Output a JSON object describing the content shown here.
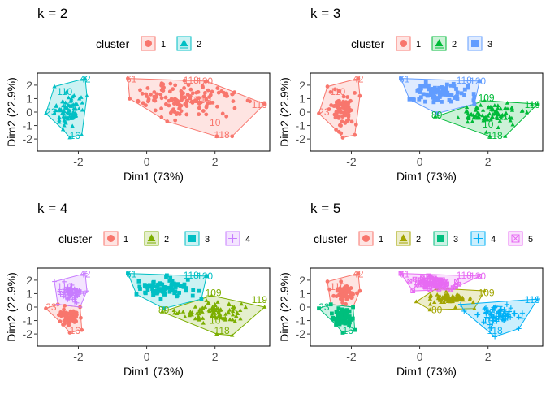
{
  "chart_data": [
    {
      "type": "scatter",
      "title": "k = 2",
      "legend_title": "cluster",
      "legend_position": "top",
      "xlabel": "Dim1 (73%)",
      "ylabel": "Dim2 (22.9%)",
      "xlim": [
        -3.2,
        3.6
      ],
      "ylim": [
        -2.9,
        2.9
      ],
      "x_ticks": [
        "-2",
        "0",
        "2"
      ],
      "y_ticks": [
        "-2",
        "-1",
        "0",
        "1",
        "2"
      ],
      "x_tick_values": [
        -2,
        0,
        2
      ],
      "y_tick_values": [
        -2,
        -1,
        0,
        1,
        2
      ],
      "point_labels": [
        "42",
        "23",
        "16",
        "119",
        "110",
        "109",
        "61",
        "118",
        "10",
        "120"
      ],
      "series": [
        {
          "name": "1",
          "color": "#F8766D",
          "shape": "circle",
          "hull": [
            [
              -0.55,
              2.5
            ],
            [
              1.75,
              2.3
            ],
            [
              3.45,
              0.6
            ],
            [
              2.5,
              -1.8
            ],
            [
              2.05,
              -1.8
            ],
            [
              0.6,
              -0.7
            ],
            [
              -0.5,
              1.0
            ]
          ],
          "x_center": 1.1,
          "y_center": 0.9,
          "x_spread": 1.4,
          "y_spread": 1.1,
          "labels": [
            [
              -0.45,
              2.45,
              "61"
            ],
            [
              1.3,
              2.35,
              "118"
            ],
            [
              1.7,
              2.3,
              "120"
            ],
            [
              3.3,
              0.55,
              "119"
            ],
            [
              1.45,
              0.9,
              "110"
            ],
            [
              1.65,
              0.9,
              "109"
            ],
            [
              2.0,
              -0.8,
              "10"
            ],
            [
              2.2,
              -1.7,
              "118"
            ]
          ]
        },
        {
          "name": "2",
          "color": "#00BFC4",
          "shape": "triangle",
          "hull": [
            [
              -1.8,
              2.5
            ],
            [
              -1.75,
              1.2
            ],
            [
              -1.9,
              -1.7
            ],
            [
              -2.25,
              -1.9
            ],
            [
              -2.45,
              -1.3
            ],
            [
              -2.95,
              -0.1
            ],
            [
              -2.7,
              1.9
            ]
          ],
          "x_center": -2.25,
          "y_center": 0.15,
          "x_spread": 0.3,
          "y_spread": 1.0,
          "labels": [
            [
              -1.8,
              2.45,
              "42"
            ],
            [
              -2.4,
              1.5,
              "110"
            ],
            [
              -2.8,
              0.0,
              "23"
            ],
            [
              -2.1,
              -1.75,
              "16"
            ]
          ]
        }
      ]
    },
    {
      "type": "scatter",
      "title": "k = 3",
      "legend_title": "cluster",
      "legend_position": "top",
      "xlabel": "Dim1 (73%)",
      "ylabel": "Dim2 (22.9%)",
      "xlim": [
        -3.2,
        3.6
      ],
      "ylim": [
        -2.9,
        2.9
      ],
      "x_ticks": [
        "-2",
        "0",
        "2"
      ],
      "y_ticks": [
        "-2",
        "-1",
        "0",
        "1",
        "2"
      ],
      "x_tick_values": [
        -2,
        0,
        2
      ],
      "y_tick_values": [
        -2,
        -1,
        0,
        1,
        2
      ],
      "point_labels": [
        "42",
        "23",
        "16",
        "119",
        "110",
        "109",
        "61",
        "118",
        "10",
        "120"
      ],
      "series": [
        {
          "name": "1",
          "color": "#F8766D",
          "shape": "circle",
          "hull": [
            [
              -1.8,
              2.5
            ],
            [
              -1.75,
              1.2
            ],
            [
              -1.9,
              -1.7
            ],
            [
              -2.25,
              -1.9
            ],
            [
              -2.45,
              -1.3
            ],
            [
              -2.95,
              -0.1
            ],
            [
              -2.7,
              1.9
            ]
          ],
          "x_center": -2.25,
          "y_center": 0.15,
          "x_spread": 0.3,
          "y_spread": 1.0,
          "labels": [
            [
              -1.8,
              2.45,
              "42"
            ],
            [
              -2.4,
              1.5,
              "110"
            ],
            [
              -2.8,
              0.0,
              "23"
            ]
          ]
        },
        {
          "name": "2",
          "color": "#00BA38",
          "shape": "triangle",
          "hull": [
            [
              0.45,
              -0.35
            ],
            [
              1.9,
              0.85
            ],
            [
              3.45,
              0.6
            ],
            [
              2.5,
              -1.8
            ],
            [
              2.05,
              -1.8
            ]
          ],
          "x_center": 2.0,
          "y_center": -0.2,
          "x_spread": 0.8,
          "y_spread": 0.7,
          "labels": [
            [
              1.95,
              1.05,
              "109"
            ],
            [
              3.3,
              0.55,
              "119"
            ],
            [
              0.5,
              -0.2,
              "80"
            ],
            [
              2.0,
              -0.9,
              "10"
            ],
            [
              2.2,
              -1.75,
              "118"
            ]
          ]
        },
        {
          "name": "3",
          "color": "#619CFF",
          "shape": "square",
          "hull": [
            [
              -0.55,
              2.5
            ],
            [
              1.75,
              2.3
            ],
            [
              1.6,
              0.6
            ],
            [
              0.5,
              -0.1
            ],
            [
              -0.3,
              0.95
            ]
          ],
          "x_center": 0.55,
          "y_center": 1.45,
          "x_spread": 0.7,
          "y_spread": 0.6,
          "labels": [
            [
              -0.45,
              2.45,
              "61"
            ],
            [
              1.3,
              2.35,
              "118"
            ],
            [
              1.7,
              2.3,
              "120"
            ]
          ]
        }
      ]
    },
    {
      "type": "scatter",
      "title": "k = 4",
      "legend_title": "cluster",
      "legend_position": "top",
      "xlabel": "Dim1 (73%)",
      "ylabel": "Dim2 (22.9%)",
      "xlim": [
        -3.2,
        3.6
      ],
      "ylim": [
        -2.9,
        2.9
      ],
      "x_ticks": [
        "-2",
        "0",
        "2"
      ],
      "y_ticks": [
        "-2",
        "-1",
        "0",
        "1",
        "2"
      ],
      "x_tick_values": [
        -2,
        0,
        2
      ],
      "y_tick_values": [
        -2,
        -1,
        0,
        1,
        2
      ],
      "point_labels": [
        "42",
        "23",
        "16",
        "119",
        "110",
        "109",
        "61",
        "118",
        "10",
        "120"
      ],
      "series": [
        {
          "name": "1",
          "color": "#F8766D",
          "shape": "circle",
          "hull": [
            [
              -2.6,
              0.2
            ],
            [
              -1.95,
              0.0
            ],
            [
              -1.9,
              -1.7
            ],
            [
              -2.25,
              -1.9
            ],
            [
              -2.45,
              -1.3
            ],
            [
              -2.95,
              -0.1
            ]
          ],
          "x_center": -2.3,
          "y_center": -0.75,
          "x_spread": 0.25,
          "y_spread": 0.5,
          "labels": [
            [
              -2.8,
              0.0,
              "23"
            ],
            [
              -2.1,
              -1.75,
              "16"
            ]
          ]
        },
        {
          "name": "2",
          "color": "#7CAE00",
          "shape": "triangle",
          "hull": [
            [
              0.45,
              -0.35
            ],
            [
              1.9,
              0.85
            ],
            [
              3.45,
              0.0
            ],
            [
              2.5,
              -2.1
            ],
            [
              2.05,
              -2.0
            ]
          ],
          "x_center": 2.0,
          "y_center": -0.4,
          "x_spread": 0.8,
          "y_spread": 0.7,
          "labels": [
            [
              1.95,
              1.05,
              "109"
            ],
            [
              3.3,
              0.55,
              "119"
            ],
            [
              0.5,
              -0.2,
              "80"
            ],
            [
              2.0,
              -1.0,
              "10"
            ],
            [
              2.2,
              -1.75,
              "118"
            ]
          ]
        },
        {
          "name": "3",
          "color": "#00BFC4",
          "shape": "square",
          "hull": [
            [
              -0.55,
              2.5
            ],
            [
              1.75,
              2.3
            ],
            [
              1.6,
              0.6
            ],
            [
              0.5,
              -0.1
            ],
            [
              -0.3,
              0.95
            ]
          ],
          "x_center": 0.55,
          "y_center": 1.45,
          "x_spread": 0.7,
          "y_spread": 0.6,
          "labels": [
            [
              -0.45,
              2.45,
              "61"
            ],
            [
              1.3,
              2.35,
              "118"
            ],
            [
              1.7,
              2.3,
              "120"
            ]
          ]
        },
        {
          "name": "4",
          "color": "#C77CFF",
          "shape": "cross-square",
          "hull": [
            [
              -1.8,
              2.5
            ],
            [
              -1.75,
              1.2
            ],
            [
              -1.95,
              0.0
            ],
            [
              -2.6,
              0.2
            ],
            [
              -2.7,
              1.9
            ]
          ],
          "x_center": -2.2,
          "y_center": 1.0,
          "x_spread": 0.25,
          "y_spread": 0.55,
          "labels": [
            [
              -1.8,
              2.45,
              "42"
            ],
            [
              -2.4,
              1.5,
              "110"
            ]
          ]
        }
      ]
    },
    {
      "type": "scatter",
      "title": "k = 5",
      "legend_title": "cluster",
      "legend_position": "top",
      "xlabel": "Dim1 (73%)",
      "ylabel": "Dim2 (22.9%)",
      "xlim": [
        -3.2,
        3.6
      ],
      "ylim": [
        -2.9,
        2.9
      ],
      "x_ticks": [
        "-2",
        "0",
        "2"
      ],
      "y_ticks": [
        "-2",
        "-1",
        "0",
        "1",
        "2"
      ],
      "x_tick_values": [
        -2,
        0,
        2
      ],
      "y_tick_values": [
        -2,
        -1,
        0,
        1,
        2
      ],
      "point_labels": [
        "42",
        "23",
        "16",
        "119",
        "110",
        "109",
        "61",
        "118",
        "10",
        "120"
      ],
      "series": [
        {
          "name": "1",
          "color": "#F8766D",
          "shape": "circle",
          "hull": [
            [
              -1.8,
              2.5
            ],
            [
              -1.75,
              1.2
            ],
            [
              -1.95,
              0.0
            ],
            [
              -2.6,
              0.2
            ],
            [
              -2.7,
              1.9
            ]
          ],
          "x_center": -2.2,
          "y_center": 1.0,
          "x_spread": 0.25,
          "y_spread": 0.55,
          "labels": [
            [
              -1.8,
              2.45,
              "42"
            ],
            [
              -2.4,
              1.5,
              "110"
            ]
          ]
        },
        {
          "name": "2",
          "color": "#A3A500",
          "shape": "triangle",
          "hull": [
            [
              -0.1,
              0.4
            ],
            [
              0.5,
              1.4
            ],
            [
              1.9,
              1.2
            ],
            [
              1.6,
              -0.1
            ],
            [
              0.3,
              -0.2
            ]
          ],
          "x_center": 0.9,
          "y_center": 0.6,
          "x_spread": 0.45,
          "y_spread": 0.35,
          "labels": [
            [
              1.95,
              1.05,
              "109"
            ],
            [
              0.5,
              -0.2,
              "80"
            ]
          ]
        },
        {
          "name": "3",
          "color": "#00BF7D",
          "shape": "square",
          "hull": [
            [
              -2.6,
              0.2
            ],
            [
              -1.95,
              0.0
            ],
            [
              -1.9,
              -1.7
            ],
            [
              -2.25,
              -1.9
            ],
            [
              -2.45,
              -1.3
            ],
            [
              -2.95,
              -0.1
            ]
          ],
          "x_center": -2.3,
          "y_center": -0.75,
          "x_spread": 0.25,
          "y_spread": 0.5,
          "labels": [
            [
              -2.8,
              0.0,
              "23"
            ],
            [
              -2.1,
              -1.75,
              "16"
            ]
          ]
        },
        {
          "name": "4",
          "color": "#00B0F6",
          "shape": "cross",
          "hull": [
            [
              1.2,
              0.2
            ],
            [
              3.45,
              0.6
            ],
            [
              2.9,
              -1.6
            ],
            [
              2.2,
              -2.2
            ],
            [
              1.3,
              -0.3
            ]
          ],
          "x_center": 2.3,
          "y_center": -0.6,
          "x_spread": 0.45,
          "y_spread": 0.6,
          "labels": [
            [
              3.3,
              0.55,
              "119"
            ],
            [
              2.0,
              -1.0,
              "10"
            ],
            [
              2.2,
              -1.75,
              "118"
            ]
          ]
        },
        {
          "name": "5",
          "color": "#E76BF3",
          "shape": "square-x",
          "hull": [
            [
              -0.55,
              2.5
            ],
            [
              1.75,
              2.3
            ],
            [
              0.9,
              1.3
            ],
            [
              -0.2,
              1.2
            ]
          ],
          "x_center": 0.4,
          "y_center": 1.8,
          "x_spread": 0.5,
          "y_spread": 0.35,
          "labels": [
            [
              -0.45,
              2.45,
              "61"
            ],
            [
              1.3,
              2.35,
              "118"
            ],
            [
              1.7,
              2.3,
              "120"
            ]
          ]
        }
      ]
    }
  ]
}
